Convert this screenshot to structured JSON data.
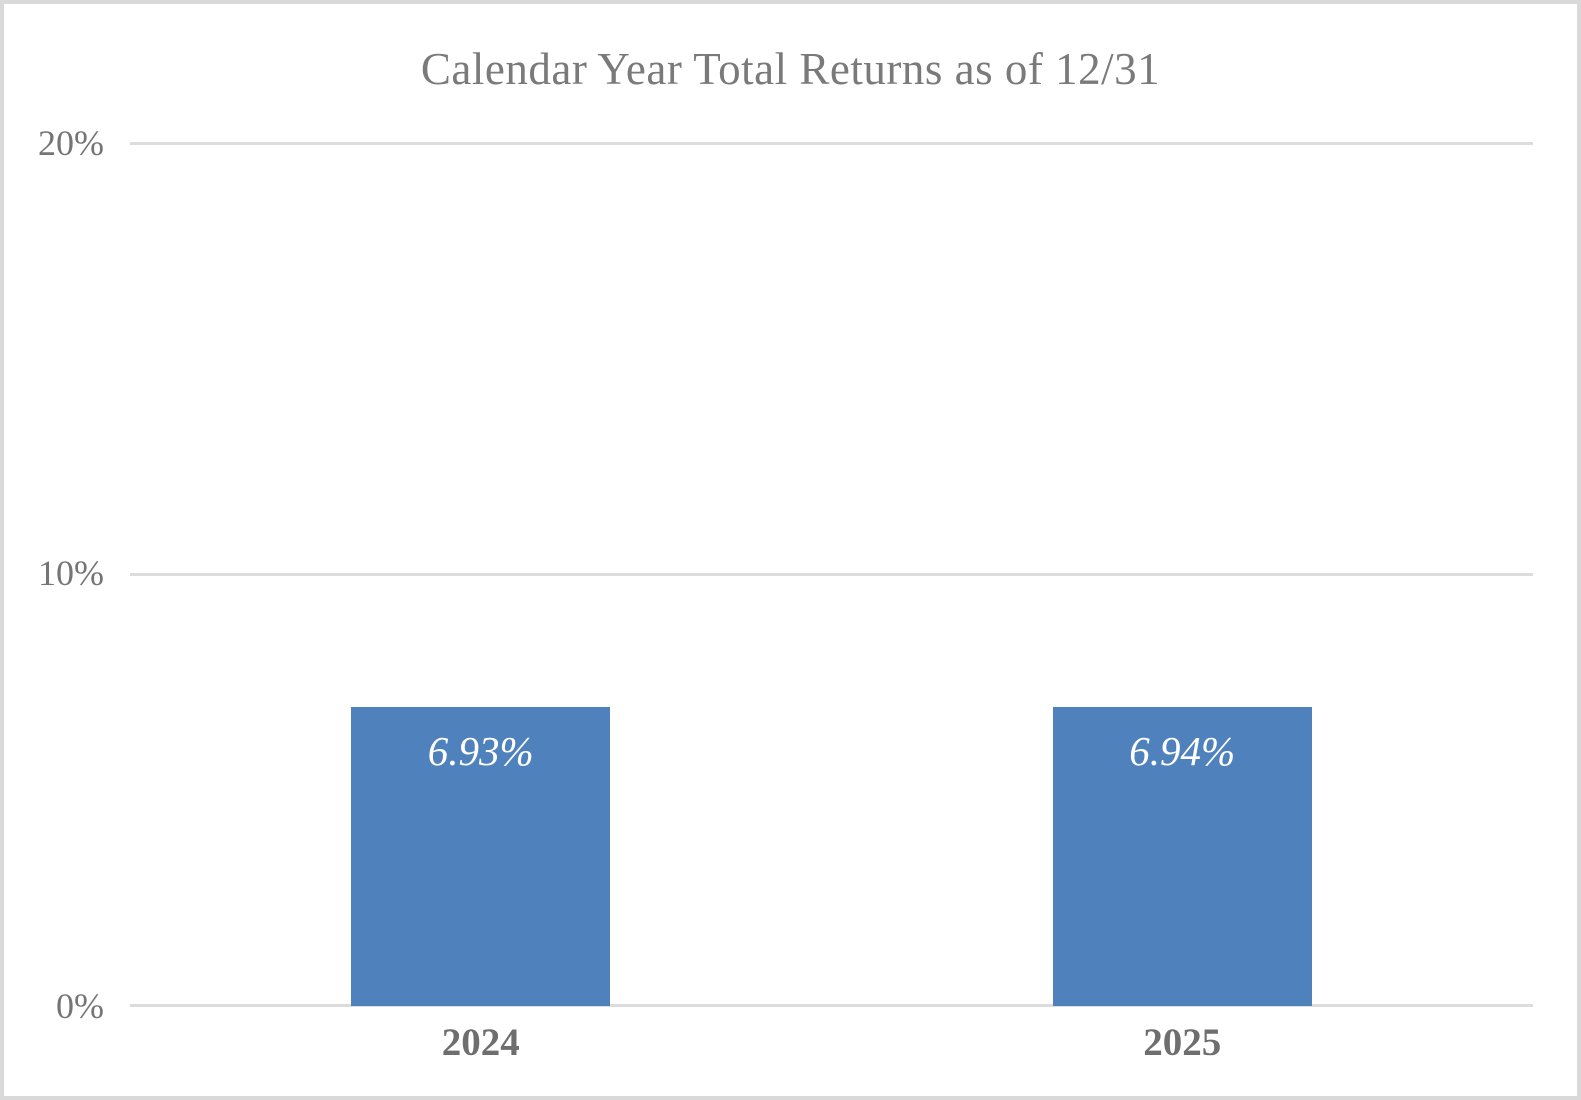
{
  "chart_data": {
    "type": "bar",
    "title": "Calendar Year Total Returns as of 12/31",
    "categories": [
      "2024",
      "2025"
    ],
    "values": [
      6.93,
      6.94
    ],
    "value_labels": [
      "6.93%",
      "6.94%"
    ],
    "xlabel": "",
    "ylabel": "",
    "ylim": [
      0,
      20
    ],
    "yticks": [
      {
        "value": 20,
        "label": "20%"
      },
      {
        "value": 10,
        "label": "10%"
      },
      {
        "value": 0,
        "label": "0%"
      }
    ],
    "grid": true,
    "legend": false,
    "colors": {
      "bar": "#4F81BD",
      "gridline": "#DCDCDC",
      "title_text": "#7A7A7A",
      "axis_tick_text": "#757575",
      "category_text": "#6E6E6E",
      "value_label_text": "#FFFFFF",
      "frame_border": "#D9D9D9",
      "background": "#FFFFFF"
    }
  }
}
